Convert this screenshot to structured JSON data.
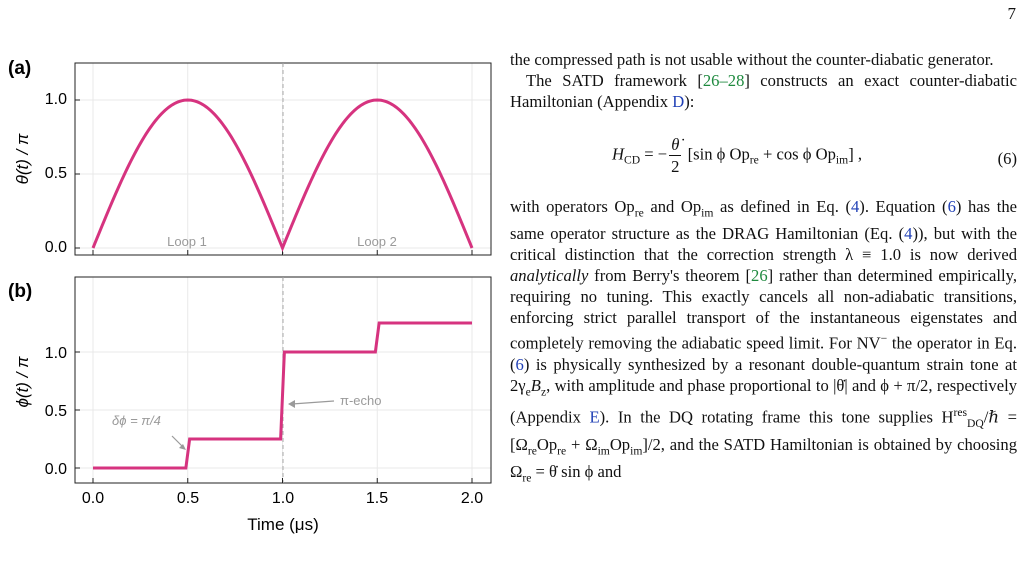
{
  "page": {
    "number": "7"
  },
  "figure": {
    "panel_a": {
      "label": "(a)",
      "ylabel": "θ(t) / π",
      "yticks": [
        "0.0",
        "0.5",
        "1.0"
      ],
      "annotations": [
        "Loop 1",
        "Loop 2"
      ]
    },
    "panel_b": {
      "label": "(b)",
      "ylabel": "ϕ(t) / π",
      "yticks": [
        "0.0",
        "0.5",
        "1.0"
      ],
      "xticks": [
        "0.0",
        "0.5",
        "1.0",
        "1.5",
        "2.0"
      ],
      "xlabel": "Time (μs)",
      "annotations": {
        "step": "δϕ = π/4",
        "echo": "π-echo"
      }
    },
    "colors": {
      "curve": "#d6337f",
      "grid": "#e9e9e9",
      "annotation": "#9a9a9a"
    }
  },
  "chart_data": [
    {
      "type": "line",
      "panel": "(a)",
      "ylabel": "θ(t) / π",
      "xlim": [
        0,
        2.0
      ],
      "ylim": [
        -0.04,
        1.16
      ],
      "grid": true,
      "series": [
        {
          "x": [
            0,
            0.1,
            0.2,
            0.25,
            0.3,
            0.4,
            0.5,
            0.6,
            0.7,
            0.75,
            0.8,
            0.9,
            1.0,
            1.1,
            1.2,
            1.25,
            1.3,
            1.4,
            1.5,
            1.6,
            1.7,
            1.75,
            1.8,
            1.9,
            2.0
          ],
          "y": [
            0.0,
            0.309,
            0.588,
            0.707,
            0.809,
            0.951,
            1.0,
            0.951,
            0.809,
            0.707,
            0.588,
            0.309,
            0.0,
            0.309,
            0.588,
            0.707,
            0.809,
            0.951,
            1.0,
            0.951,
            0.809,
            0.707,
            0.588,
            0.309,
            0.0
          ]
        }
      ]
    },
    {
      "type": "line",
      "panel": "(b)",
      "ylabel": "ϕ(t) / π",
      "xlabel": "Time (μs)",
      "xlim": [
        -0.1,
        2.1
      ],
      "ylim": [
        -0.06,
        1.45
      ],
      "grid": true,
      "series": [
        {
          "x": [
            0,
            0.49,
            0.5,
            0.51,
            0.99,
            1.0,
            1.01,
            1.49,
            1.5,
            1.51,
            2.0
          ],
          "y": [
            0.0,
            0.0,
            0.125,
            0.25,
            0.25,
            0.625,
            1.0,
            1.0,
            1.125,
            1.25,
            1.25
          ]
        }
      ]
    }
  ],
  "text": {
    "p1": "the compressed path is not usable without the counter-diabatic generator.",
    "p2_a": "The SATD framework [",
    "p2_cite": "26–28",
    "p2_b": "] constructs an exact counter-diabatic Hamiltonian (Appendix ",
    "p2_app": "D",
    "p2_c": "):",
    "eq_lhs": "H",
    "eq_lhs_sub": "CD",
    "eq_rhs": "[sin ϕ Op",
    "eq_rhs_mid": " + cos ϕ Op",
    "eq_rhs_end": "] ,",
    "eq_num": "(6)",
    "eq_op_re": "re",
    "eq_op_im": "im",
    "p3_a": "with operators Op",
    "p3_b": " and Op",
    "p3_c": " as defined in Eq. (",
    "p3_ref4": "4",
    "p3_d": "). Equation (",
    "p3_ref6": "6",
    "p3_e": ") has the same operator structure as the DRAG Hamiltonian (Eq. (",
    "p3_f": ")), but with the critical distinction that the correction strength λ ≡ 1.0 is now derived ",
    "p3_ital": "analytically",
    "p3_g": " from Berry's theorem [",
    "p3_ref26": "26",
    "p3_h": "] rather than determined empirically, requiring no tuning. This exactly cancels all non-adiabatic transitions, enforcing strict parallel transport of the instantaneous eigenstates and completely removing the adiabatic speed limit. For NV",
    "p3_sup": "−",
    "p3_i": " the operator in Eq. (",
    "p3_j": ") is physically synthesized by a resonant double-quantum strain tone at 2γ",
    "p3_k": "B",
    "p3_l": ", with amplitude and phase proportional to |θ̇| and ϕ + π/2, respectively (Appendix ",
    "p3_appE": "E",
    "p3_m": "). In the DQ rotating frame this tone supplies H",
    "p3_n": "/ℏ = [Ω",
    "p3_o": "Op",
    "p3_p": " + Ω",
    "p3_q": "]/2, and the SATD",
    "p3_r": "Hamiltonian is obtained by choosing Ω",
    "p3_s": " = θ̇ sin ϕ and"
  }
}
